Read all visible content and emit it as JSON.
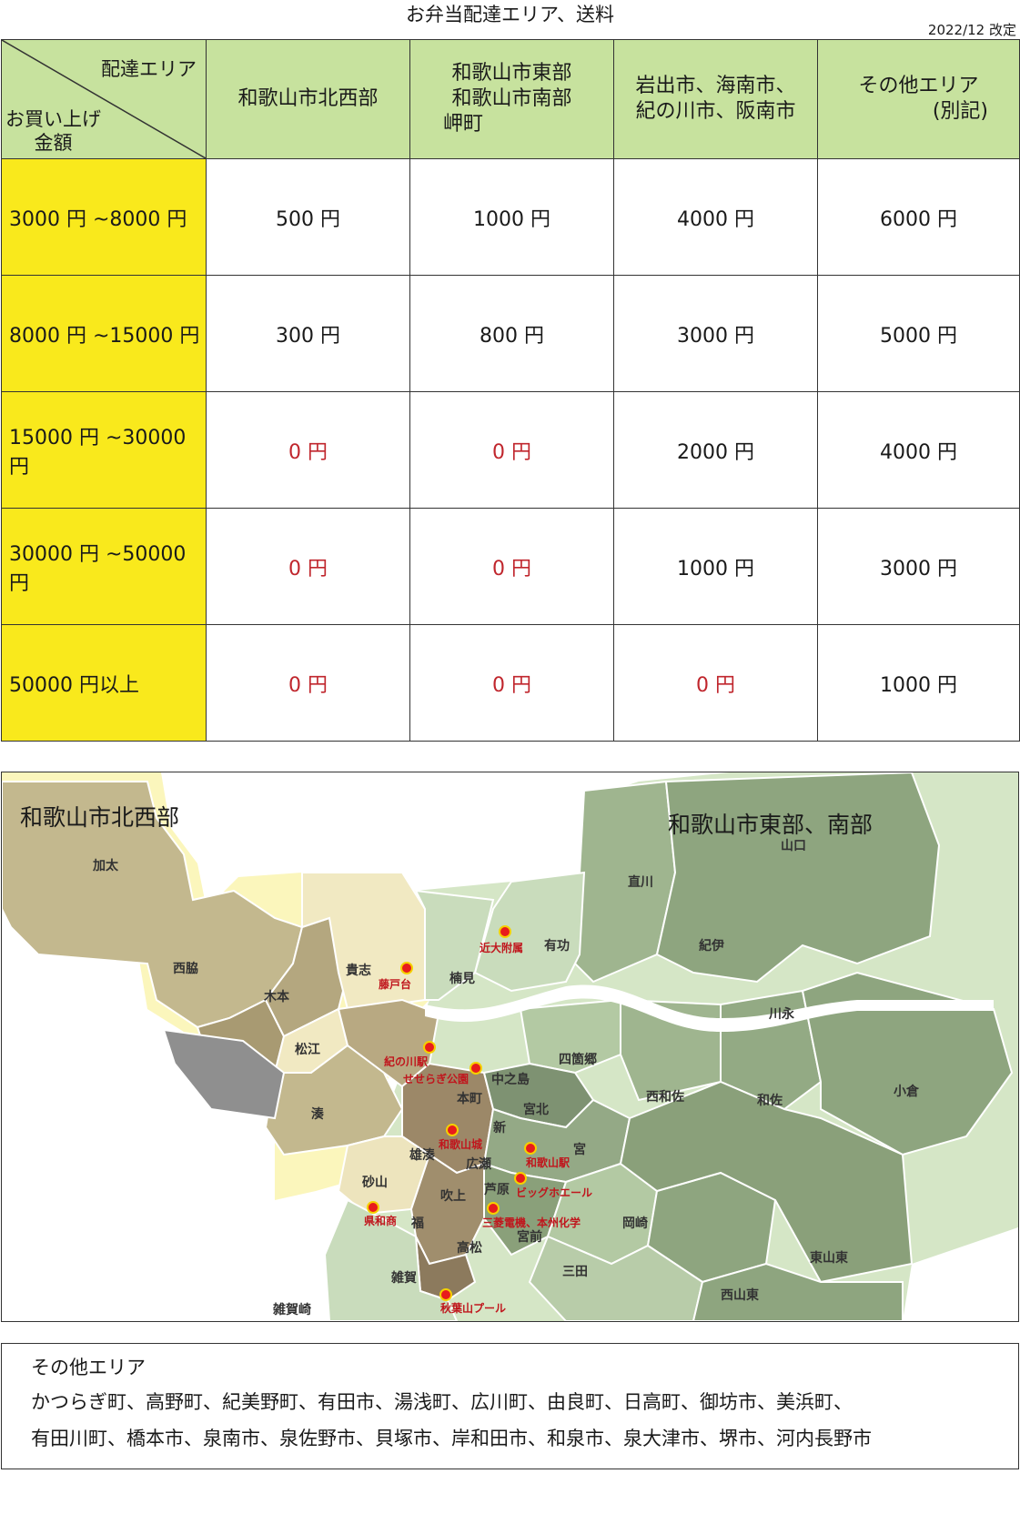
{
  "page": {
    "title": "お弁当配達エリア、送料",
    "revised": "2022/12 改定"
  },
  "table": {
    "corner_area": "配達エリア",
    "corner_amount_line1": "お買い上げ",
    "corner_amount_line2": "金額",
    "areas": [
      {
        "lines": [
          "和歌山市北西部"
        ]
      },
      {
        "lines": [
          "和歌山市東部",
          "和歌山市南部",
          "岬町"
        ]
      },
      {
        "lines": [
          "岩出市、海南市、",
          "紀の川市、阪南市"
        ]
      },
      {
        "lines": [
          "その他エリア",
          "(別記)"
        ]
      }
    ],
    "rows": [
      {
        "amount": "3000 円 ~8000 円",
        "fees": [
          "500 円",
          "1000 円",
          "4000 円",
          "6000 円"
        ]
      },
      {
        "amount": "8000 円 ~15000 円",
        "fees": [
          "300 円",
          "800 円",
          "3000 円",
          "5000 円"
        ]
      },
      {
        "amount": "15000 円 ~30000 円",
        "fees": [
          "0 円",
          "0 円",
          "2000 円",
          "4000 円"
        ]
      },
      {
        "amount": "30000 円 ~50000 円",
        "fees": [
          "0 円",
          "0 円",
          "1000 円",
          "3000 円"
        ]
      },
      {
        "amount": "50000 円以上",
        "fees": [
          "0 円",
          "0 円",
          "0 円",
          "1000 円"
        ]
      }
    ]
  },
  "map": {
    "label_northwest": "和歌山市北西部",
    "label_east_south": "和歌山市東部、南部",
    "places": [
      "加太",
      "西脇",
      "木本",
      "貴志",
      "松江",
      "湊",
      "楠見",
      "有功",
      "直川",
      "紀伊",
      "山口",
      "川永",
      "四箇郷",
      "中之島",
      "本町",
      "宮北",
      "新",
      "西和佐",
      "和佐",
      "小倉",
      "雄湊",
      "広瀬",
      "宮",
      "芦原",
      "吹上",
      "砂山",
      "福",
      "高松",
      "宮前",
      "岡崎",
      "三田",
      "雑賀",
      "東山東",
      "西山東",
      "雑賀崎"
    ],
    "spots": [
      "近大附属",
      "藤戸台",
      "紀の川駅",
      "せせらぎ公園",
      "和歌山城",
      "和歌山駅",
      "ビッグホエール",
      "三菱電機、本州化学",
      "県和商",
      "秋葉山プール"
    ],
    "colors": {
      "olive": "#c3b88e",
      "olive_dark": "#a89a72",
      "cream": "#f1e9c2",
      "brown": "#9c8868",
      "green_light": "#c9dcbc",
      "green_mid": "#9fb58f",
      "green_dark": "#7e9272",
      "yellow_border": "#fbf6bc",
      "gray": "#8f8f8f",
      "pin": "#e81c1c"
    }
  },
  "other_areas": {
    "title": "その他エリア",
    "line1": "かつらぎ町、高野町、紀美野町、有田市、湯浅町、広川町、由良町、日高町、御坊市、美浜町、",
    "line2": "有田川町、橋本市、泉南市、泉佐野市、貝塚市、岸和田市、和泉市、泉大津市、堺市、河内長野市"
  }
}
